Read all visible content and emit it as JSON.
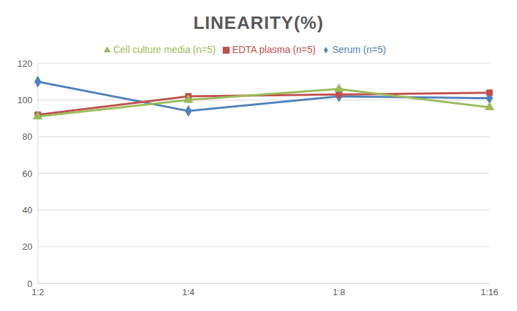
{
  "chart_data": {
    "type": "line",
    "title": "LINEARITY(%)",
    "categories": [
      "1:2",
      "1:4",
      "1:8",
      "1:16"
    ],
    "series": [
      {
        "name": "Serum (n=5)",
        "color": "#4f81bd",
        "marker": "diamond",
        "values": [
          110,
          94,
          102,
          101
        ]
      },
      {
        "name": "EDTA plasma (n=5)",
        "color": "#c0504d",
        "marker": "square",
        "values": [
          92,
          102,
          103,
          104
        ]
      },
      {
        "name": "Cell culture media (n=5)",
        "color": "#9bbb59",
        "marker": "triangle",
        "values": [
          91,
          100,
          106,
          96
        ]
      }
    ],
    "ylim": [
      0,
      120
    ],
    "yticks": [
      0,
      20,
      40,
      60,
      80,
      100,
      120
    ],
    "grid": true,
    "legend": "top"
  }
}
